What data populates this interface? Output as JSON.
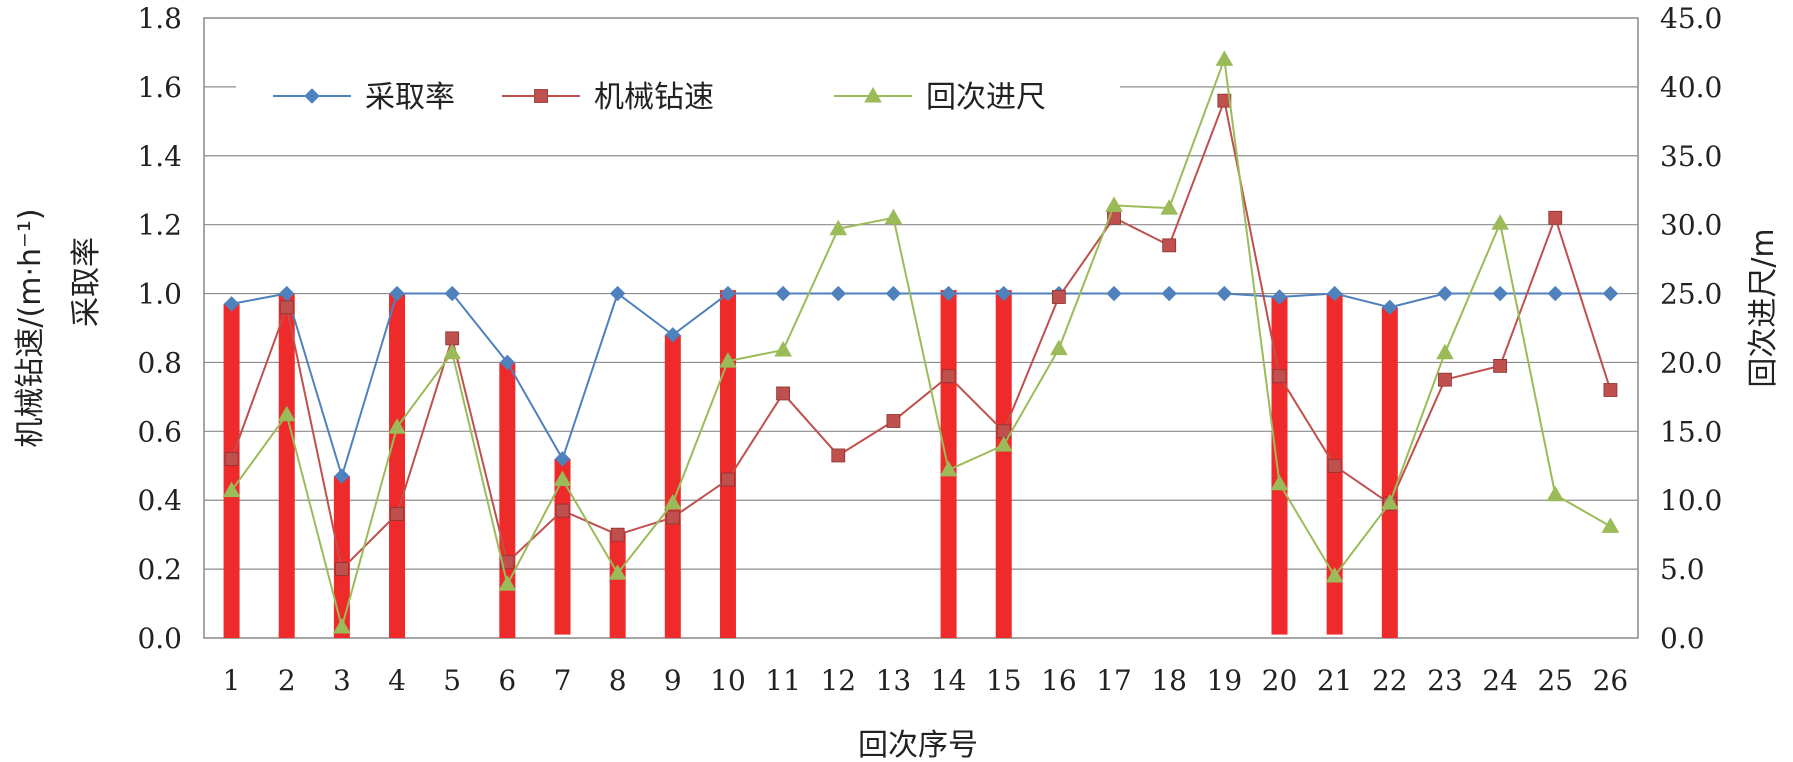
{
  "chart_data": {
    "type": "line",
    "x": [
      1,
      2,
      3,
      4,
      5,
      6,
      7,
      8,
      9,
      10,
      11,
      12,
      13,
      14,
      15,
      16,
      17,
      18,
      19,
      20,
      21,
      22,
      23,
      24,
      25,
      26
    ],
    "series": [
      {
        "name": "采取率",
        "axis": "left",
        "color": "#4f81bd",
        "marker": "diamond",
        "values": [
          0.97,
          1.0,
          0.47,
          1.0,
          1.0,
          0.8,
          0.52,
          1.0,
          0.88,
          1.0,
          1.0,
          1.0,
          1.0,
          1.0,
          1.0,
          1.0,
          1.0,
          1.0,
          1.0,
          0.99,
          1.0,
          0.96,
          1.0,
          1.0,
          1.0,
          1.0
        ]
      },
      {
        "name": "机械钻速",
        "axis": "left",
        "color": "#c0504d",
        "marker": "square",
        "values": [
          0.52,
          0.96,
          0.2,
          0.36,
          0.87,
          0.22,
          0.37,
          0.3,
          0.35,
          0.46,
          0.71,
          0.53,
          0.63,
          0.76,
          0.6,
          0.99,
          1.22,
          1.14,
          1.56,
          0.76,
          0.5,
          0.39,
          0.75,
          0.79,
          1.22,
          0.72
        ]
      },
      {
        "name": "回次进尺",
        "axis": "right",
        "color": "#9bbb59",
        "marker": "triangle",
        "values": [
          10.7,
          16.2,
          0.8,
          15.3,
          20.7,
          3.9,
          11.5,
          4.7,
          9.8,
          20.1,
          20.9,
          29.7,
          30.5,
          12.2,
          14.0,
          21.0,
          31.4,
          31.2,
          42.0,
          11.2,
          4.5,
          9.8,
          20.7,
          30.1,
          10.4,
          8.1
        ]
      }
    ],
    "highlight_bars": {
      "color": "#ee2a2a",
      "bars": [
        {
          "x": 1,
          "top": 0.97,
          "bottom": 0.0
        },
        {
          "x": 2,
          "top": 1.0,
          "bottom": 0.0
        },
        {
          "x": 3,
          "top": 0.47,
          "bottom": 0.0
        },
        {
          "x": 4,
          "top": 1.0,
          "bottom": 0.0
        },
        {
          "x": 6,
          "top": 0.8,
          "bottom": 0.0
        },
        {
          "x": 7,
          "top": 0.52,
          "bottom": 0.01
        },
        {
          "x": 8,
          "top": 0.31,
          "bottom": 0.0
        },
        {
          "x": 9,
          "top": 0.88,
          "bottom": 0.0
        },
        {
          "x": 10,
          "top": 1.01,
          "bottom": 0.0
        },
        {
          "x": 14,
          "top": 1.01,
          "bottom": 0.0
        },
        {
          "x": 15,
          "top": 1.01,
          "bottom": 0.0
        },
        {
          "x": 20,
          "top": 0.99,
          "bottom": 0.01
        },
        {
          "x": 21,
          "top": 1.0,
          "bottom": 0.01
        },
        {
          "x": 22,
          "top": 0.96,
          "bottom": 0.0
        }
      ]
    },
    "y_left": {
      "lim": [
        0,
        1.8
      ],
      "ticks": [
        "0.0",
        "0.2",
        "0.4",
        "0.6",
        "0.8",
        "1.0",
        "1.2",
        "1.4",
        "1.6",
        "1.8"
      ],
      "label_line1": "机械钻速/(m·h⁻¹)",
      "label_line2": "采取率"
    },
    "y_right": {
      "lim": [
        0,
        45
      ],
      "ticks": [
        "0.0",
        "5.0",
        "10.0",
        "15.0",
        "20.0",
        "25.0",
        "30.0",
        "35.0",
        "40.0",
        "45.0"
      ],
      "label": "回次进尺/m"
    },
    "x_axis": {
      "ticks": [
        "1",
        "2",
        "3",
        "4",
        "5",
        "6",
        "7",
        "8",
        "9",
        "10",
        "11",
        "12",
        "13",
        "14",
        "15",
        "16",
        "17",
        "18",
        "19",
        "20",
        "21",
        "22",
        "23",
        "24",
        "25",
        "26"
      ],
      "label": "回次序号"
    },
    "grid": true,
    "legend": {
      "placement": "top",
      "items": [
        "采取率",
        "机械钻速",
        "回次进尺"
      ]
    }
  }
}
